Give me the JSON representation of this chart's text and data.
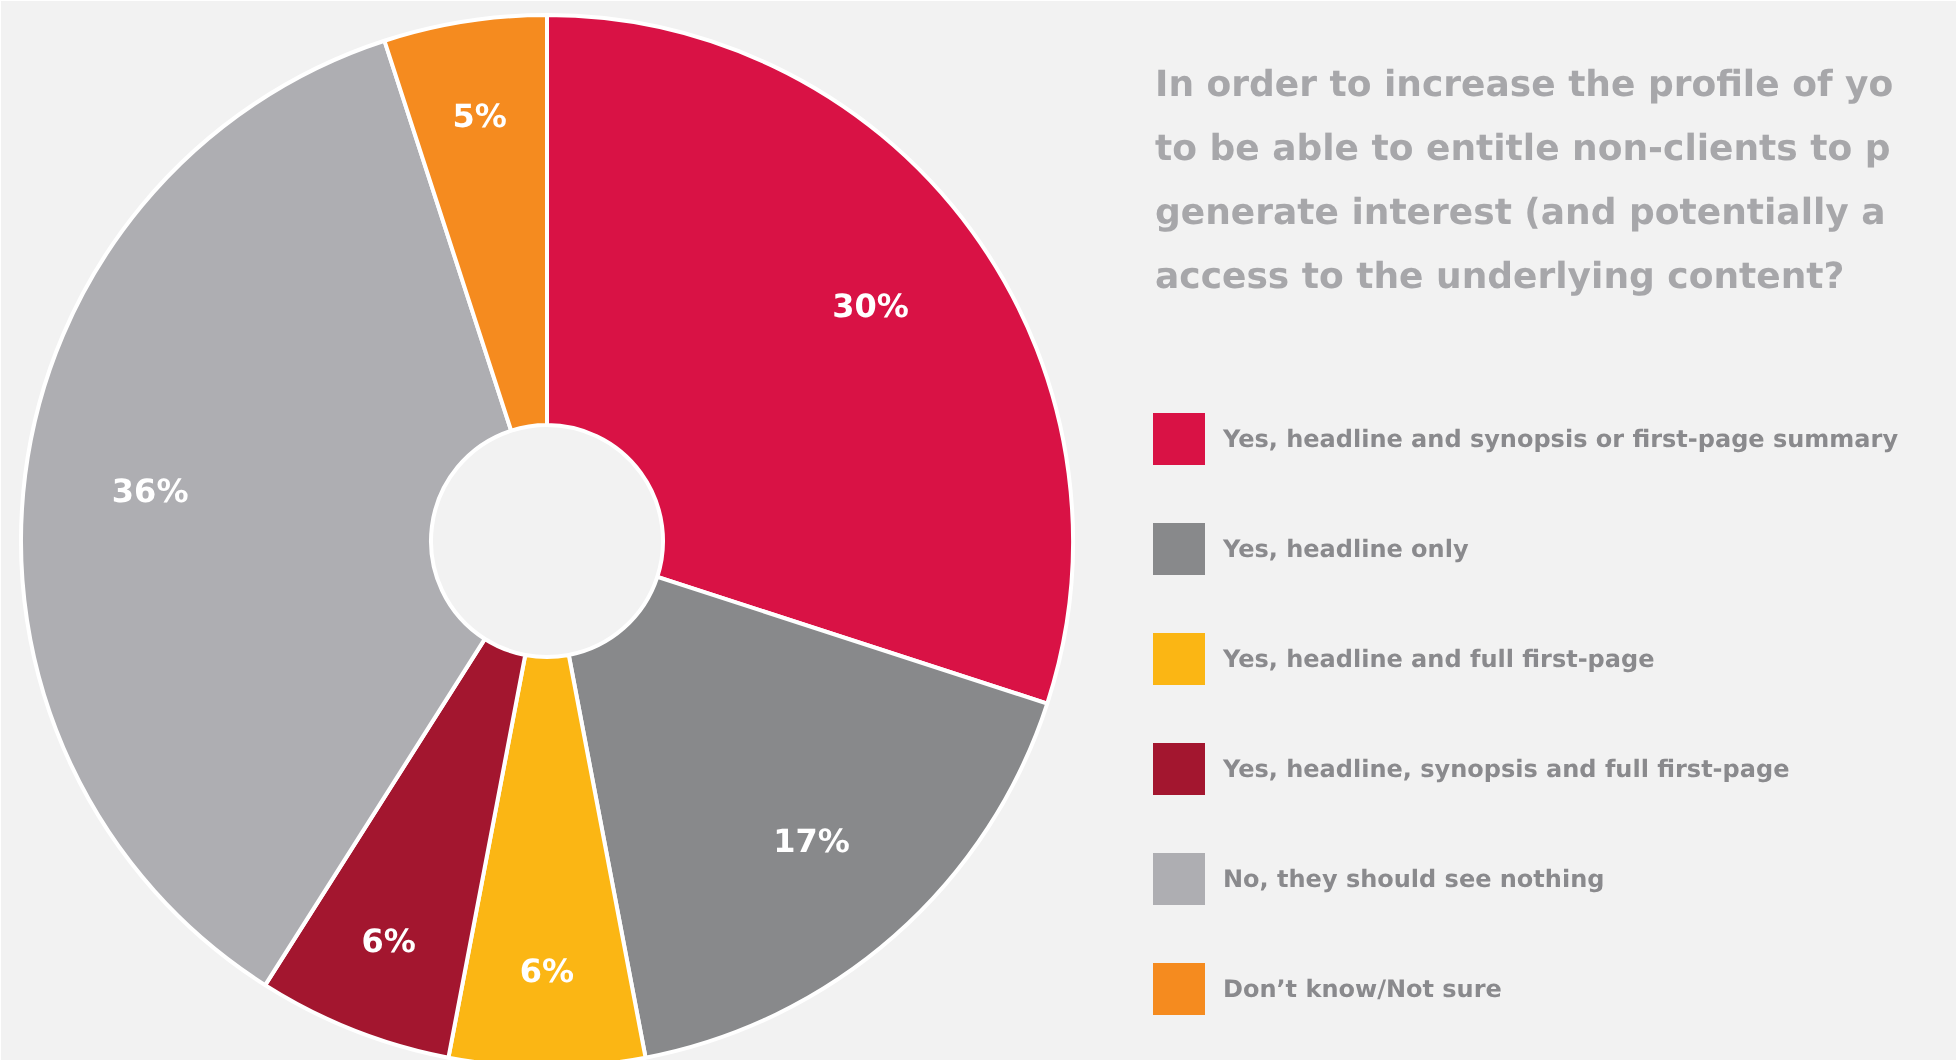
{
  "chart_data": {
    "type": "donut",
    "title": "In order to increase the profile of yo\nto be able to entitle non-clients to p\ngenerate interest (and potentially a\naccess to the underlying content?",
    "categories": [
      "Yes, headline and synopsis or first-page summary",
      "Yes, headline only",
      "Yes, headline and full first-page",
      "Yes, headline, synopsis and full first-page",
      "No, they should see nothing",
      "Don’t know/Not sure"
    ],
    "values": [
      30,
      17,
      6,
      6,
      36,
      5
    ],
    "value_labels": [
      "30%",
      "17%",
      "6%",
      "6%",
      "36%",
      "5%"
    ],
    "colors": [
      "#d91245",
      "#88898b",
      "#fbb614",
      "#a3162f",
      "#aeaeb2",
      "#f58b1f"
    ],
    "legend": "right"
  }
}
